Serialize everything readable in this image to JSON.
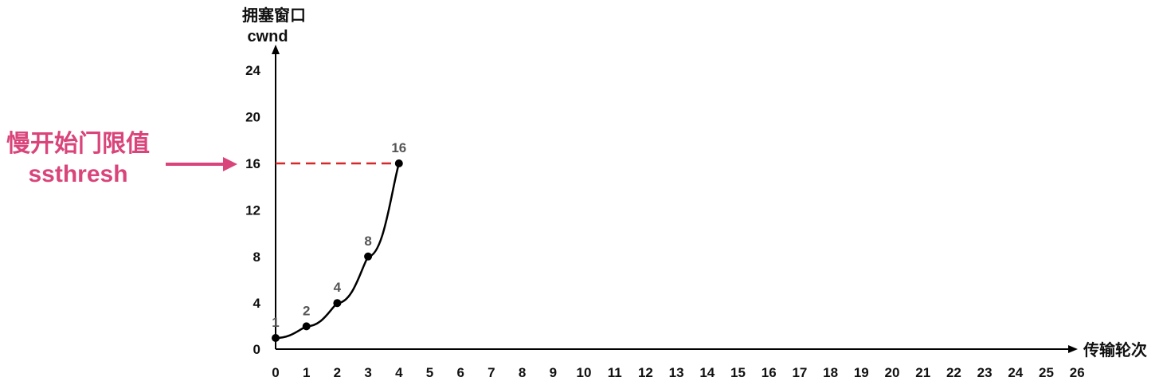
{
  "chart_data": {
    "type": "line",
    "ylabel_line1": "拥塞窗口",
    "ylabel_line2": "cwnd",
    "xlabel": "传输轮次",
    "x": [
      0,
      1,
      2,
      3,
      4
    ],
    "values": [
      1,
      2,
      4,
      8,
      16
    ],
    "data_labels": [
      "1",
      "2",
      "4",
      "8",
      "16"
    ],
    "xlim": [
      0,
      26
    ],
    "ylim": [
      0,
      24
    ],
    "xticks": [
      "0",
      "1",
      "2",
      "3",
      "4",
      "5",
      "6",
      "7",
      "8",
      "9",
      "10",
      "11",
      "12",
      "13",
      "14",
      "15",
      "16",
      "17",
      "18",
      "19",
      "20",
      "21",
      "22",
      "23",
      "24",
      "25",
      "26"
    ],
    "yticks": [
      "0",
      "4",
      "8",
      "12",
      "16",
      "20",
      "24"
    ],
    "threshold": {
      "value": 16,
      "line_color": "#d62828",
      "label_line1": "慢开始门限值",
      "label_line2": "ssthresh",
      "label_color": "#d9447a"
    },
    "grid": false,
    "line_color": "#000000"
  }
}
